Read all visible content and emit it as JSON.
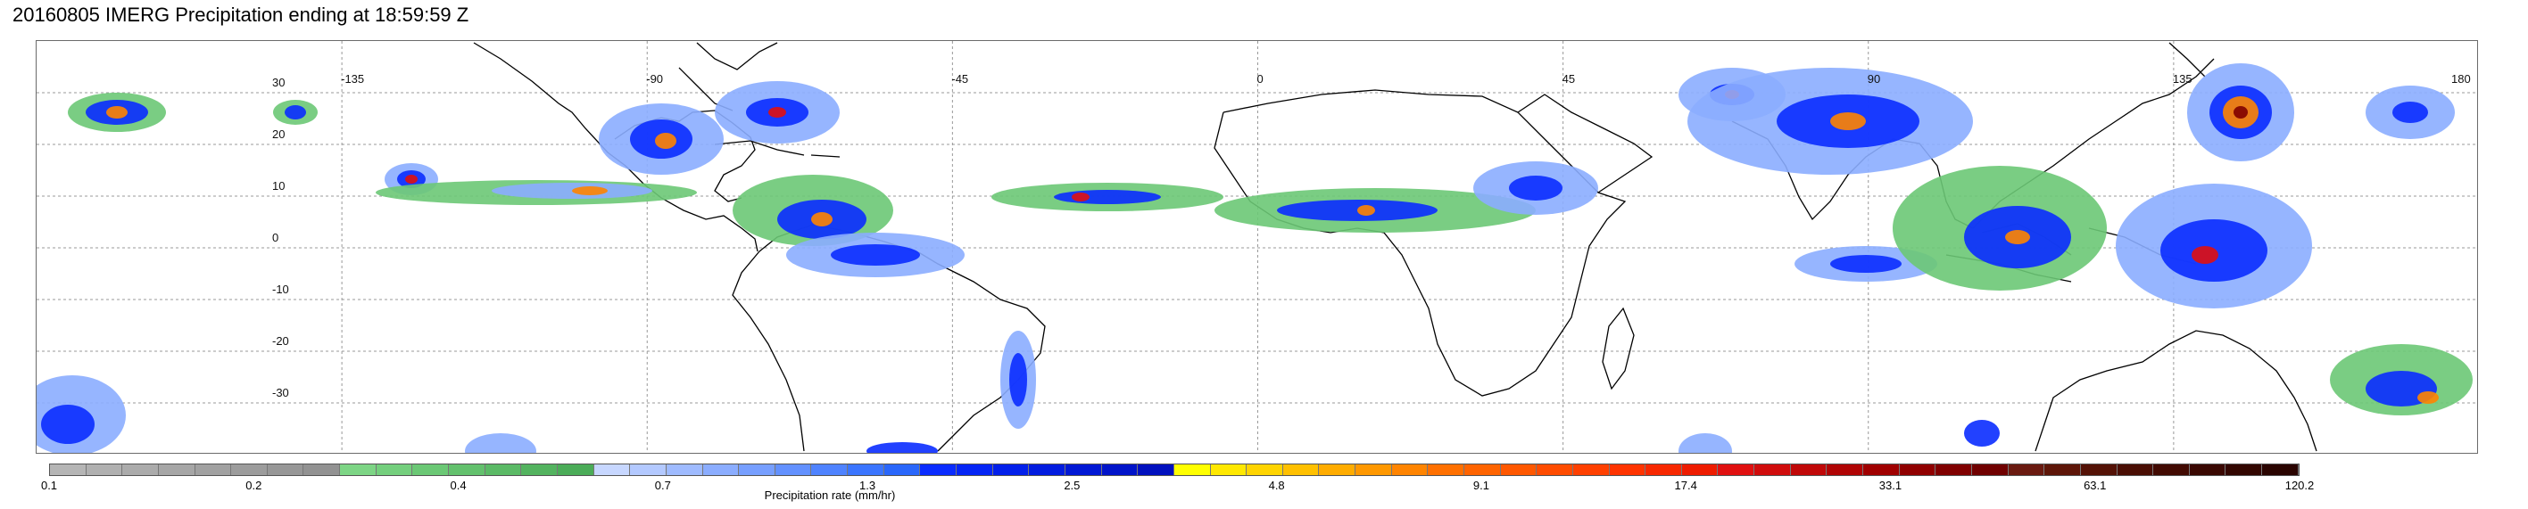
{
  "title": "20160805 IMERG Precipitation ending at 18:59:59 Z",
  "map": {
    "lon_labels": [
      "-135",
      "-90",
      "-45",
      "0",
      "45",
      "90",
      "135",
      "180"
    ],
    "lon_values": [
      -135,
      -90,
      -45,
      0,
      45,
      90,
      135,
      180
    ],
    "lat_labels": [
      "30",
      "20",
      "10",
      "0",
      "-10",
      "-20",
      "-30"
    ],
    "lat_values": [
      30,
      20,
      10,
      0,
      -10,
      -20,
      -30
    ],
    "lon_range": [
      -180,
      180
    ],
    "lat_range": [
      -40,
      40
    ],
    "gridlines": true
  },
  "colorbar": {
    "title": "Precipitation rate (mm/hr)",
    "labels": [
      "0.1",
      "0.2",
      "0.4",
      "0.7",
      "1.3",
      "2.5",
      "4.8",
      "9.1",
      "17.4",
      "33.1",
      "63.1",
      "120.2"
    ],
    "colors": [
      "#b5b5b5",
      "#b0b0b0",
      "#ababab",
      "#a6a6a6",
      "#a1a1a1",
      "#9c9c9c",
      "#979797",
      "#929292",
      "#7dd585",
      "#74cf7d",
      "#6bc875",
      "#63c16d",
      "#5bba66",
      "#53b35f",
      "#4bac58",
      "#c7d7ff",
      "#b3c9ff",
      "#9fbbff",
      "#8badff",
      "#779fff",
      "#6391ff",
      "#4f83ff",
      "#3b75ff",
      "#2a67fb",
      "#0a2cff",
      "#0525f5",
      "#0320ea",
      "#021cdf",
      "#0118d4",
      "#0114c9",
      "#0110be",
      "#ffff00",
      "#ffe800",
      "#ffd400",
      "#ffc000",
      "#ffac00",
      "#ff9800",
      "#ff8400",
      "#ff7000",
      "#ff6400",
      "#ff5800",
      "#ff4c00",
      "#ff4000",
      "#ff3400",
      "#f72800",
      "#ee1c00",
      "#e01010",
      "#d00c0c",
      "#c00808",
      "#b00404",
      "#a00000",
      "#900000",
      "#800000",
      "#700000",
      "#6a1a10",
      "#5e1608",
      "#541206",
      "#4a0e04",
      "#420a02",
      "#3a0802",
      "#320600",
      "#2a0400"
    ],
    "scale_colors": {
      "green": "#6bc875",
      "lightblue": "#8badff",
      "blue": "#0a2cff",
      "yellow": "#ffd400",
      "orange": "#ff8400",
      "red": "#e01010",
      "darkred": "#800000"
    },
    "coast_color": "#000000"
  }
}
